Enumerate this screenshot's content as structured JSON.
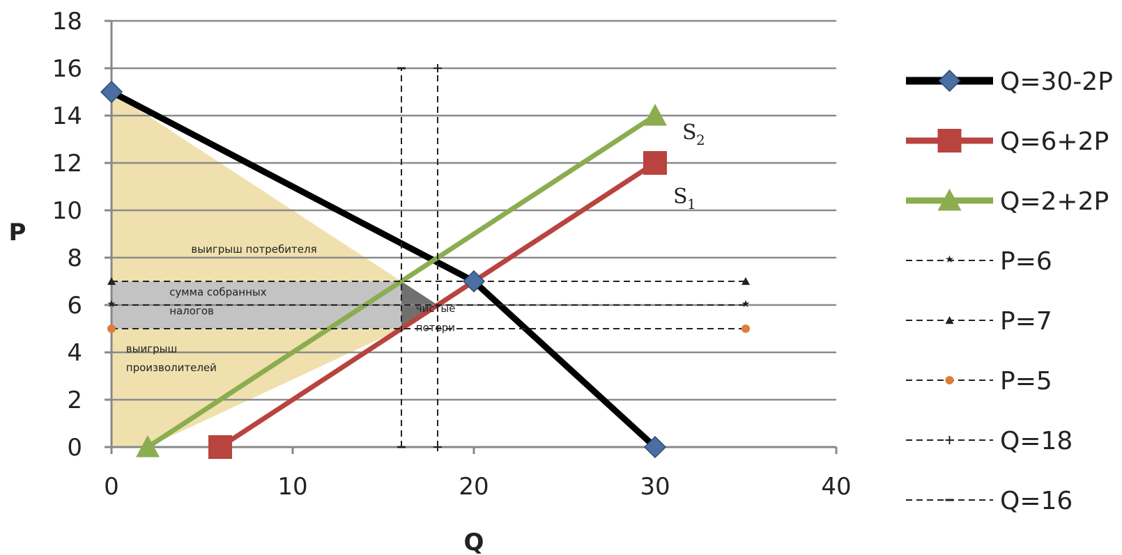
{
  "chart_data": {
    "type": "line",
    "xlabel": "Q",
    "ylabel": "P",
    "xlim": [
      0,
      40
    ],
    "ylim": [
      0,
      18
    ],
    "x_ticks": [
      "0",
      "10",
      "20",
      "30",
      "40"
    ],
    "y_ticks": [
      "0",
      "2",
      "4",
      "6",
      "8",
      "10",
      "12",
      "14",
      "16",
      "18"
    ],
    "grid": "horizontal",
    "legend_position": "right",
    "series": [
      {
        "name": "Q=30-2P",
        "color": "#000000",
        "marker": "diamond",
        "marker_color": "#4a6fa0",
        "style": "solid",
        "points": [
          {
            "q": 0,
            "p": 15
          },
          {
            "q": 20,
            "p": 7
          },
          {
            "q": 30,
            "p": 0
          }
        ]
      },
      {
        "name": "Q=6+2P",
        "color": "#b8433f",
        "marker": "square",
        "marker_color": "#b8433f",
        "style": "solid",
        "points": [
          {
            "q": 6,
            "p": 0
          },
          {
            "q": 30,
            "p": 12
          }
        ]
      },
      {
        "name": "Q=2+2P",
        "color": "#8bad4f",
        "marker": "triangle",
        "marker_color": "#8bad4f",
        "style": "solid",
        "points": [
          {
            "q": 2,
            "p": 0
          },
          {
            "q": 30,
            "p": 14
          }
        ]
      },
      {
        "name": "P=6",
        "color": "#222222",
        "marker": "star",
        "marker_color": "#222222",
        "style": "dashed",
        "points": [
          {
            "q": 0,
            "p": 6
          },
          {
            "q": 35,
            "p": 6
          }
        ]
      },
      {
        "name": "P=7",
        "color": "#222222",
        "marker": "triangle",
        "marker_color": "#222222",
        "style": "dashed",
        "points": [
          {
            "q": 0,
            "p": 7
          },
          {
            "q": 35,
            "p": 7
          }
        ]
      },
      {
        "name": "P=5",
        "color": "#222222",
        "marker": "circle",
        "marker_color": "#e07b39",
        "style": "dashed",
        "points": [
          {
            "q": 0,
            "p": 5
          },
          {
            "q": 35,
            "p": 5
          }
        ]
      },
      {
        "name": "Q=18",
        "color": "#222222",
        "marker": "plus",
        "marker_color": "#222222",
        "style": "dashed",
        "points": [
          {
            "q": 18,
            "p": 0
          },
          {
            "q": 18,
            "p": 16
          }
        ]
      },
      {
        "name": "Q=16",
        "color": "#222222",
        "marker": "dash",
        "marker_color": "#222222",
        "style": "dashed",
        "points": [
          {
            "q": 16,
            "p": 0
          },
          {
            "q": 16,
            "p": 16
          }
        ]
      }
    ],
    "regions": [
      {
        "label": "выигрыш потребителя",
        "color": "#efe0ae",
        "polygon": [
          {
            "q": 0,
            "p": 15
          },
          {
            "q": 0,
            "p": 7
          },
          {
            "q": 16,
            "p": 7
          }
        ]
      },
      {
        "label": "сумма собранных налогов",
        "color": "#c3c3c3",
        "polygon": [
          {
            "q": 0,
            "p": 7
          },
          {
            "q": 16,
            "p": 7
          },
          {
            "q": 16,
            "p": 5
          },
          {
            "q": 0,
            "p": 5
          }
        ]
      },
      {
        "label": "выигрыш произволителей",
        "color": "#efe0ae",
        "polygon": [
          {
            "q": 0,
            "p": 5
          },
          {
            "q": 16,
            "p": 5
          },
          {
            "q": 2,
            "p": 0
          },
          {
            "q": 0,
            "p": 0
          }
        ]
      },
      {
        "label": "чистые потери",
        "color": "#707070",
        "polygon": [
          {
            "q": 16,
            "p": 7
          },
          {
            "q": 18,
            "p": 6
          },
          {
            "q": 16,
            "p": 5
          }
        ]
      }
    ],
    "annotations": [
      {
        "text": "выигрыш потребителя",
        "q": 4.4,
        "p": 8.2
      },
      {
        "text": "сумма собранных",
        "q": 3.2,
        "p": 6.4
      },
      {
        "text": "налогов",
        "q": 3.2,
        "p": 5.6
      },
      {
        "text": "выигрыш",
        "q": 0.8,
        "p": 4.0
      },
      {
        "text": "произволителей",
        "q": 0.8,
        "p": 3.2
      },
      {
        "text": "чистые",
        "q": 16.8,
        "p": 5.7
      },
      {
        "text": "потери",
        "q": 16.8,
        "p": 4.9
      }
    ],
    "series_tags": [
      {
        "main": "S",
        "sub": "2",
        "q": 31.5,
        "p": 13.0
      },
      {
        "main": "S",
        "sub": "1",
        "q": 31.0,
        "p": 10.3
      }
    ]
  }
}
